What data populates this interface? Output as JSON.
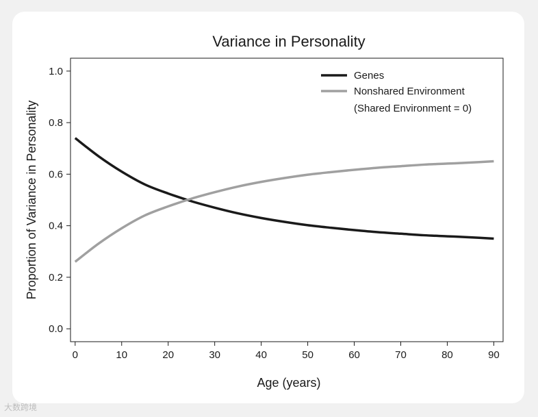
{
  "chart_data": {
    "type": "line",
    "title": "Variance in Personality",
    "xlabel": "Age (years)",
    "ylabel": "Proportion of Variance in Personality",
    "xlim": [
      -1,
      92
    ],
    "ylim": [
      -0.05,
      1.05
    ],
    "x_ticks": [
      0,
      10,
      20,
      30,
      40,
      50,
      60,
      70,
      80,
      90
    ],
    "y_ticks": [
      0.0,
      0.2,
      0.4,
      0.6,
      0.8,
      1.0
    ],
    "x_tick_labels": [
      "0",
      "10",
      "20",
      "30",
      "40",
      "50",
      "60",
      "70",
      "80",
      "90"
    ],
    "y_tick_labels": [
      "0.0",
      "0.2",
      "0.4",
      "0.6",
      "0.8",
      "1.0"
    ],
    "legend_position": "top-right",
    "legend_note": "(Shared Environment = 0)",
    "grid": false,
    "x": [
      0,
      5,
      10,
      15,
      20,
      25,
      30,
      35,
      40,
      45,
      50,
      55,
      60,
      65,
      70,
      75,
      80,
      85,
      90
    ],
    "series": [
      {
        "name": "Genes",
        "color": "#1a1a1a",
        "values": [
          0.74,
          0.67,
          0.61,
          0.56,
          0.525,
          0.495,
          0.47,
          0.448,
          0.43,
          0.415,
          0.402,
          0.392,
          0.383,
          0.375,
          0.369,
          0.363,
          0.359,
          0.355,
          0.35
        ]
      },
      {
        "name": "Nonshared Environment",
        "color": "#a0a0a0",
        "values": [
          0.26,
          0.33,
          0.39,
          0.44,
          0.475,
          0.505,
          0.53,
          0.552,
          0.57,
          0.585,
          0.598,
          0.608,
          0.617,
          0.625,
          0.631,
          0.637,
          0.641,
          0.645,
          0.65
        ]
      }
    ]
  },
  "watermark": {
    "text": "大数跨境"
  }
}
